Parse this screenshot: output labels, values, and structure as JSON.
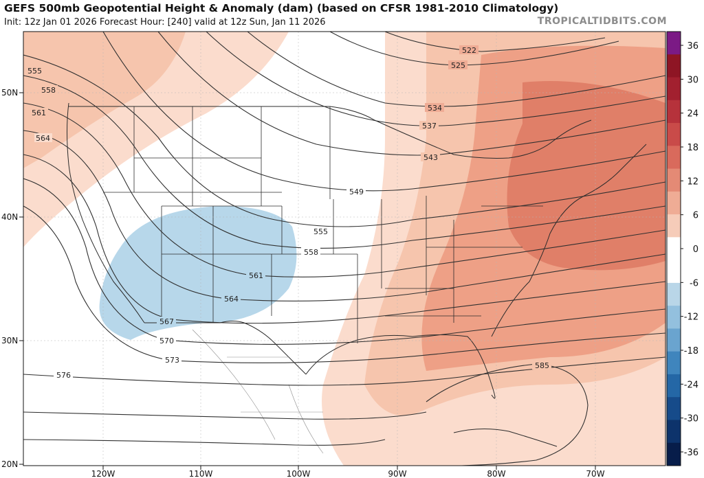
{
  "header": {
    "title": "GEFS 500mb Geopotential Height & Anomaly (dam) (based on CFSR 1981-2010 Climatology)",
    "subtitle": "Init: 12z Jan 01 2026   Forecast Hour: [240]   valid at 12z Sun, Jan 11 2026",
    "brand": "TROPICALTIDBITS.COM"
  },
  "axes": {
    "lat_labels": [
      "50N",
      "40N",
      "30N",
      "20N"
    ],
    "lon_labels": [
      "120W",
      "110W",
      "100W",
      "90W",
      "80W",
      "70W"
    ]
  },
  "contour_labels": [
    "522",
    "525",
    "534",
    "537",
    "543",
    "549",
    "555",
    "558",
    "561",
    "564",
    "567",
    "570",
    "573",
    "576",
    "585",
    "555",
    "558",
    "561",
    "564"
  ],
  "colorbar": {
    "ticks": [
      "36",
      "30",
      "24",
      "18",
      "12",
      "6",
      "0",
      "-6",
      "-12",
      "-18",
      "-24",
      "-30",
      "-36"
    ],
    "colors": [
      "#7b1a85",
      "#8e1524",
      "#a2202f",
      "#b6323b",
      "#c94b49",
      "#d96a5c",
      "#e48a75",
      "#efac95",
      "#f6ccb9",
      "#ffffff",
      "#ffffff",
      "#b9d6e8",
      "#93c0de",
      "#6aa4cf",
      "#3f85bd",
      "#2467a6",
      "#164b8a",
      "#0d336b",
      "#071d4a"
    ]
  },
  "colors": {
    "anomaly_pos_weak": "#fbdccd",
    "anomaly_pos_light": "#f6c5ad",
    "anomaly_pos_mid": "#eea086",
    "anomaly_pos_strong": "#e07f68",
    "anomaly_neg": "#b7d7ea"
  }
}
